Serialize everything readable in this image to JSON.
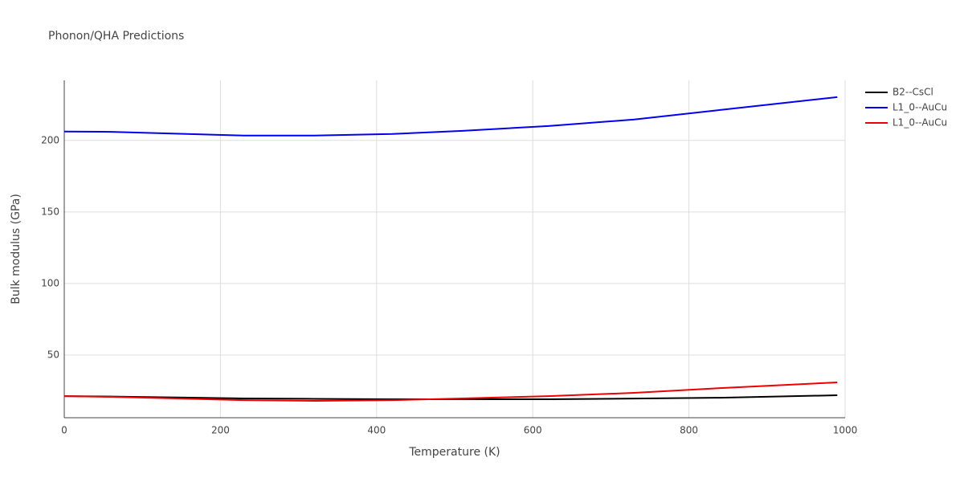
{
  "chart_data": {
    "type": "line",
    "title": "Phonon/QHA Predictions",
    "x_label": "Temperature (K)",
    "y_label": "Bulk modulus (GPa)",
    "x": [
      0,
      60,
      230,
      320,
      420,
      510,
      620,
      730,
      840,
      990
    ],
    "series": [
      {
        "name": "B2--CsCl",
        "color": "#000000",
        "values": [
          21.3,
          21.0,
          19.7,
          19.4,
          19.1,
          19.1,
          19.1,
          19.6,
          20.2,
          21.9
        ]
      },
      {
        "name": "L1_0--AuCu",
        "color": "#0000ee",
        "values": [
          206.2,
          206.0,
          203.4,
          203.4,
          204.5,
          206.7,
          210.1,
          214.6,
          221.3,
          230.3
        ]
      },
      {
        "name": "L1_0--AuCu",
        "color": "#ee0000",
        "values": [
          21.3,
          20.8,
          18.5,
          18.0,
          18.5,
          19.7,
          21.3,
          23.6,
          26.9,
          30.9
        ]
      }
    ],
    "xlim": [
      0,
      1000
    ],
    "xticks": [
      0,
      200,
      400,
      600,
      800,
      1000
    ],
    "ylim": [
      6.2,
      242
    ],
    "yticks": [
      50,
      100,
      150,
      200
    ],
    "grid": true
  }
}
